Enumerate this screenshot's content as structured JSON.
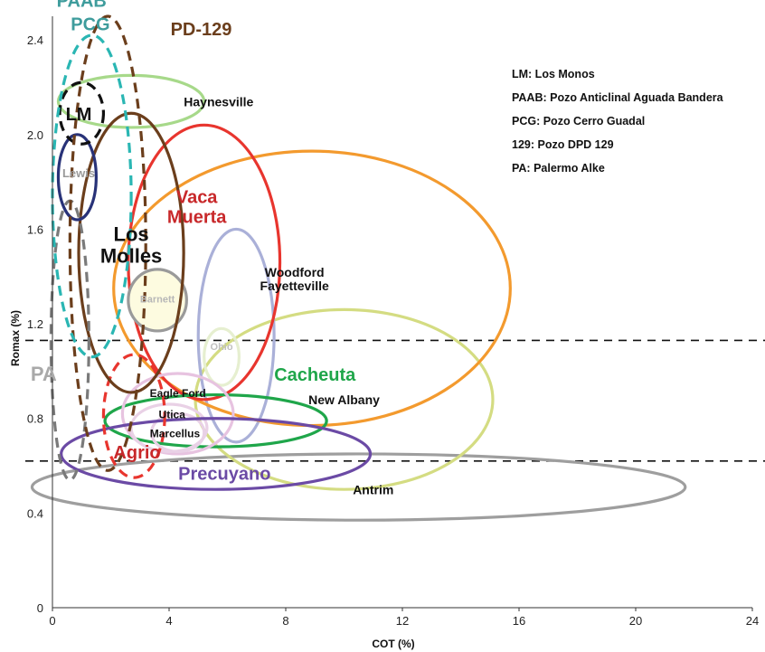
{
  "chart_data": {
    "type": "scatter",
    "xlabel": "COT (%)",
    "ylabel": "Romax (%)",
    "xlim": [
      0,
      24
    ],
    "ylim": [
      0,
      2.5
    ],
    "x_ticks": [
      "0",
      "4",
      "8",
      "12",
      "16",
      "20",
      "24"
    ],
    "y_ticks": [
      "0",
      "0.4",
      "0.8",
      "1.2",
      "1.6",
      "2.0",
      "2.4"
    ],
    "legend_placement": "top-right",
    "legend_lines": [
      "LM: Los Monos",
      "PAAB: Pozo Anticlinal Aguada Bandera",
      "PCG: Pozo Cerro Guadal",
      "129: Pozo DPD 129",
      "PA: Palermo Alke"
    ],
    "reference_lines": [
      {
        "y": 1.13,
        "style": "dashed"
      },
      {
        "y": 0.62,
        "style": "dashed"
      }
    ],
    "regions": [
      {
        "label": "Antrim",
        "x_center": 10.5,
        "y_center": 0.51,
        "x_halfwidth": 11.2,
        "y_halfwidth": 0.14,
        "color": "#9e9e9e",
        "dashed": false,
        "fill": "none",
        "label_x": 11,
        "label_y": 0.48,
        "label_color": "#111111",
        "label_size": 14
      },
      {
        "label": "New Albany",
        "x_center": 10.0,
        "y_center": 0.88,
        "x_halfwidth": 5.1,
        "y_halfwidth": 0.38,
        "color": "#d4dc82",
        "dashed": false,
        "fill": "none",
        "label_x": 10,
        "label_y": 0.86,
        "label_color": "#111111",
        "label_size": 14
      },
      {
        "label": "Woodford\nFayetteville",
        "x_center": 6.3,
        "y_center": 1.15,
        "x_halfwidth": 1.3,
        "y_halfwidth": 0.45,
        "color": "#aab0d8",
        "dashed": false,
        "fill": "none",
        "label_x": 8.3,
        "label_y": 1.4,
        "label_color": "#111111",
        "label_size": 14
      },
      {
        "label": "Ohio",
        "x_center": 5.8,
        "y_center": 1.06,
        "x_halfwidth": 0.6,
        "y_halfwidth": 0.12,
        "color": "#e6efd0",
        "dashed": false,
        "fill": "none",
        "label_x": 5.8,
        "label_y": 1.09,
        "label_color": "#c0c0c0",
        "label_size": 11
      },
      {
        "label": "Vaca\nMuerta",
        "x_center": 8.9,
        "y_center": 1.35,
        "x_halfwidth": 6.8,
        "y_halfwidth": 0.58,
        "color": "#f39a2e",
        "dashed": false,
        "fill": "none",
        "label_x": 4.95,
        "label_y": 1.71,
        "label_color": "#c8282a",
        "label_size": 20
      },
      {
        "label": "",
        "x_center": 5.2,
        "y_center": 1.46,
        "x_halfwidth": 2.6,
        "y_halfwidth": 0.58,
        "color": "#e8352e",
        "dashed": false,
        "fill": "none",
        "label_x": 0,
        "label_y": 0,
        "label_color": "#111111",
        "label_size": 12
      },
      {
        "label": "Barnett",
        "x_center": 3.6,
        "y_center": 1.3,
        "x_halfwidth": 1.0,
        "y_halfwidth": 0.13,
        "color": "#9a9a9a",
        "dashed": false,
        "fill": "#fdfbe0",
        "label_x": 3.6,
        "label_y": 1.29,
        "label_color": "#b7b7b7",
        "label_size": 11
      },
      {
        "label": "Haynesville",
        "x_center": 2.7,
        "y_center": 2.14,
        "x_halfwidth": 2.5,
        "y_halfwidth": 0.11,
        "color": "#a7d98a",
        "dashed": false,
        "fill": "none",
        "label_x": 5.7,
        "label_y": 2.12,
        "label_color": "#111111",
        "label_size": 14
      },
      {
        "label": "Cacheuta",
        "x_center": 5.6,
        "y_center": 0.79,
        "x_halfwidth": 3.8,
        "y_halfwidth": 0.11,
        "color": "#1fa64a",
        "dashed": false,
        "fill": "none",
        "label_x": 9.0,
        "label_y": 0.96,
        "label_color": "#1fa64a",
        "label_size": 20
      },
      {
        "label": "Eagle Ford",
        "x_center": 4.3,
        "y_center": 0.82,
        "x_halfwidth": 1.9,
        "y_halfwidth": 0.17,
        "color": "#e7c3e0",
        "dashed": false,
        "fill": "none",
        "label_x": 4.3,
        "label_y": 0.89,
        "label_color": "#111111",
        "label_size": 12
      },
      {
        "label": "Utica",
        "x_center": 4.0,
        "y_center": 0.76,
        "x_halfwidth": 1.3,
        "y_halfwidth": 0.1,
        "color": "#e9d1e6",
        "dashed": false,
        "fill": "none",
        "label_x": 4.1,
        "label_y": 0.8,
        "label_color": "#111111",
        "label_size": 12
      },
      {
        "label": "Marcellus",
        "x_center": 4.3,
        "y_center": 0.74,
        "x_halfwidth": 0.9,
        "y_halfwidth": 0.08,
        "color": "#e9d1e6",
        "dashed": false,
        "fill": "none",
        "label_x": 4.2,
        "label_y": 0.72,
        "label_color": "#111111",
        "label_size": 12
      },
      {
        "label": "Precuyano",
        "x_center": 5.6,
        "y_center": 0.65,
        "x_halfwidth": 5.3,
        "y_halfwidth": 0.15,
        "color": "#6b4aa5",
        "dashed": false,
        "fill": "none",
        "label_x": 5.9,
        "label_y": 0.54,
        "label_color": "#6b4aa5",
        "label_size": 20
      },
      {
        "label": "Agrio",
        "x_center": 2.8,
        "y_center": 0.81,
        "x_halfwidth": 1.05,
        "y_halfwidth": 0.26,
        "color": "#e8352e",
        "dashed": true,
        "fill": "none",
        "label_x": 2.9,
        "label_y": 0.63,
        "label_color": "#c8282a",
        "label_size": 20
      },
      {
        "label": "Los\nMolles",
        "x_center": 2.7,
        "y_center": 1.5,
        "x_halfwidth": 1.8,
        "y_halfwidth": 0.59,
        "color": "#6b3e1c",
        "dashed": false,
        "fill": "none",
        "label_x": 2.7,
        "label_y": 1.55,
        "label_color": "#111111",
        "label_size": 22
      },
      {
        "label": "Lewis",
        "x_center": 0.85,
        "y_center": 1.82,
        "x_halfwidth": 0.65,
        "y_halfwidth": 0.18,
        "color": "#283278",
        "dashed": false,
        "fill": "none",
        "label_x": 0.9,
        "label_y": 1.82,
        "label_color": "#9a9a9a",
        "label_size": 13
      },
      {
        "label": "LM",
        "x_center": 1.0,
        "y_center": 2.09,
        "x_halfwidth": 0.75,
        "y_halfwidth": 0.13,
        "color": "#111111",
        "dashed": true,
        "fill": "none",
        "label_x": 0.9,
        "label_y": 2.06,
        "label_color": "#111111",
        "label_size": 20
      },
      {
        "label": "PA",
        "x_center": 0.6,
        "y_center": 1.13,
        "x_halfwidth": 0.65,
        "y_halfwidth": 0.59,
        "color": "#7a7a7a",
        "dashed": true,
        "fill": "none",
        "label_x": -0.3,
        "label_y": 0.96,
        "label_color": "#a9a9a9",
        "label_size": 22
      },
      {
        "label": "PD-129",
        "x_center": 1.9,
        "y_center": 1.54,
        "x_halfwidth": 1.3,
        "y_halfwidth": 0.96,
        "color": "#6b3e1c",
        "dashed": true,
        "fill": "none",
        "label_x": 5.1,
        "label_y": 2.42,
        "label_color": "#6b3e1c",
        "label_size": 20
      },
      {
        "label": "PCG",
        "x_center": 1.35,
        "y_center": 1.74,
        "x_halfwidth": 1.35,
        "y_halfwidth": 0.68,
        "color": "#2ab6b3",
        "dashed": true,
        "fill": "none",
        "label_x": 1.3,
        "label_y": 2.44,
        "label_color": "#3e9c9c",
        "label_size": 20
      },
      {
        "label": "PAAB",
        "x_center": 0,
        "y_center": 0,
        "x_halfwidth": 0,
        "y_halfwidth": 0,
        "color": "#3e9c9c",
        "dashed": false,
        "fill": "none",
        "label_x": 1.0,
        "label_y": 2.54,
        "label_color": "#3e9c9c",
        "label_size": 20
      }
    ]
  }
}
